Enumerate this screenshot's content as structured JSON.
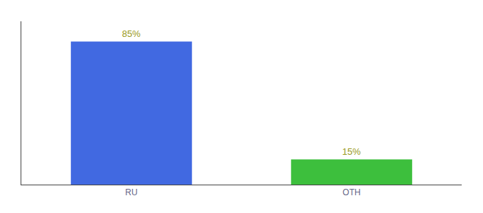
{
  "chart_data": {
    "type": "bar",
    "categories": [
      "RU",
      "OTH"
    ],
    "values": [
      85,
      15
    ],
    "value_labels": [
      "85%",
      "15%"
    ],
    "colors": [
      "#4169e1",
      "#3dbf3d"
    ],
    "data_labels": true,
    "ylim": [
      0,
      97
    ],
    "tick_labels": "x",
    "grid": false
  }
}
